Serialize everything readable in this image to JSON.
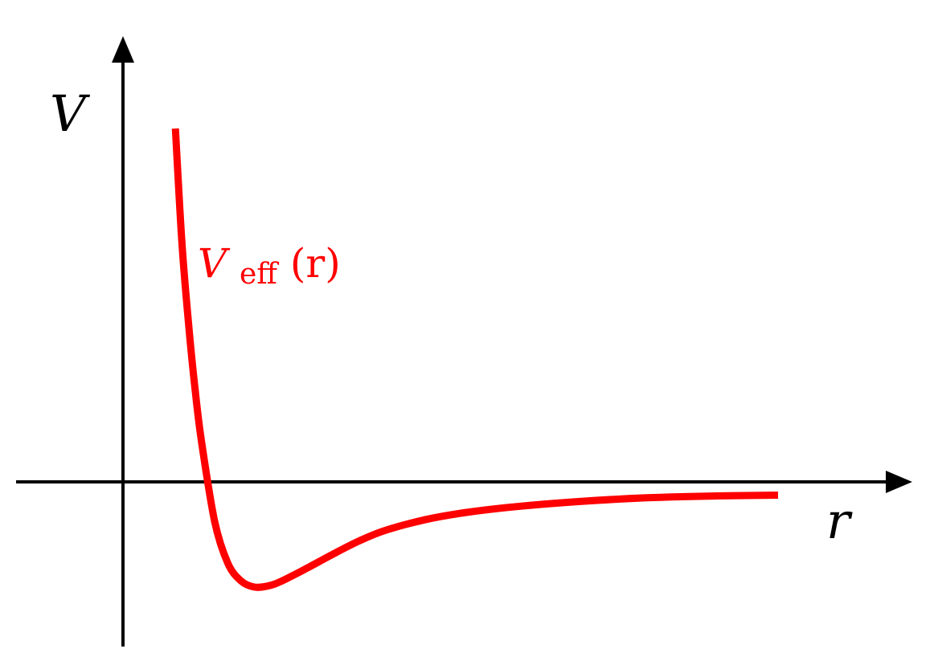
{
  "chart_data": {
    "type": "line",
    "title": "",
    "xlabel": "r",
    "ylabel": "V",
    "grid": false,
    "legend": "none",
    "annotation": {
      "base": "V",
      "subscript": "eff",
      "argument": "(r)"
    },
    "series": [
      {
        "name": "V_eff(r)",
        "color": "#ff0000",
        "x": [
          0.4,
          0.45,
          0.5,
          0.55,
          0.6,
          0.7,
          0.8,
          0.9,
          1.0,
          1.1,
          1.2,
          1.4,
          1.6,
          1.8,
          2.0,
          2.3,
          2.6,
          3.0,
          3.5,
          4.0,
          4.5,
          5.0
        ],
        "y": [
          4.0,
          2.7,
          1.8,
          1.05,
          0.45,
          -0.45,
          -0.92,
          -1.12,
          -1.19,
          -1.18,
          -1.13,
          -0.98,
          -0.82,
          -0.67,
          -0.55,
          -0.43,
          -0.35,
          -0.28,
          -0.22,
          -0.18,
          -0.16,
          -0.15
        ]
      }
    ]
  }
}
